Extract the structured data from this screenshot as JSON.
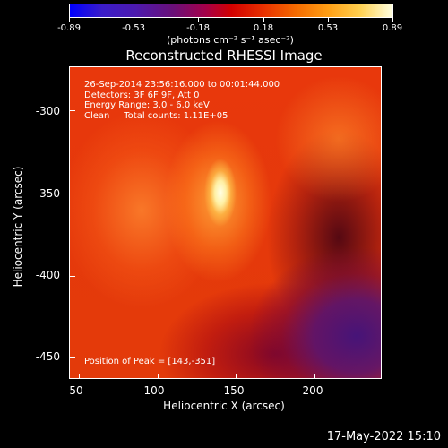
{
  "colorbar": {
    "ticks": [
      "-0.89",
      "-0.53",
      "-0.18",
      "0.18",
      "0.53",
      "0.89"
    ],
    "units": "(photons cm⁻² s⁻¹ asec⁻²)"
  },
  "title": "Reconstructed RHESSI Image",
  "annotations": {
    "lines": "26-Sep-2014 23:56:16.000 to 00:01:44.000\nDetectors: 3F 6F 9F, Att 0\nEnergy Range: 3.0 - 6.0 keV\nClean     Total counts: 1.11E+05",
    "peak": "Position of Peak = [143,-351]"
  },
  "axes": {
    "xlabel": "Heliocentric X (arcsec)",
    "ylabel": "Heliocentric Y (arcsec)",
    "xticks": [
      "50",
      "100",
      "150",
      "200"
    ],
    "yticks": [
      "-300",
      "-350",
      "-400",
      "-450"
    ]
  },
  "footer": {
    "timestamp": "17-May-2022 15:10"
  }
}
